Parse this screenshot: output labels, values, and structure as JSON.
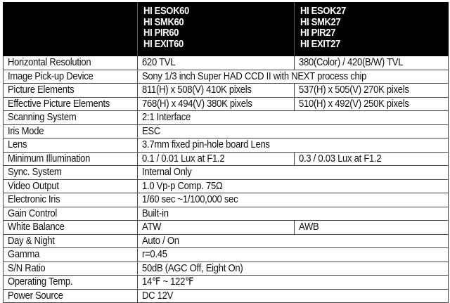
{
  "header": {
    "col2": [
      "HI ESOK60",
      "HI SMK60",
      "HI PIR60",
      "HI EXIT60"
    ],
    "col3": [
      "HI ESOK27",
      "HI SMK27",
      "HI PIR27",
      "HI EXIT27"
    ]
  },
  "rows": [
    {
      "label": "Horizontal Resolution",
      "v1": "620 TVL",
      "v2": "380(Color) / 420(B/W) TVL"
    },
    {
      "label": "Image Pick-up Device",
      "v": "Sony 1/3 inch Super HAD CCD II with NEXT process chip"
    },
    {
      "label": "Picture Elements",
      "v1": "811(H) x 508(V) 410K pixels",
      "v2": "537(H) x 505(V) 270K pixels"
    },
    {
      "label": "Effective Picture Elements",
      "v1": "768(H) x 494(V) 380K pixels",
      "v2": "510(H) x 492(V) 250K pixels"
    },
    {
      "label": "Scanning System",
      "v": "2:1 Interface"
    },
    {
      "label": "Iris Mode",
      "v": "ESC"
    },
    {
      "label": "Lens",
      "v": "3.7mm fixed pin-hole board Lens"
    },
    {
      "label": "Minimum Illumination",
      "v1": "0.1 / 0.01 Lux at F1.2",
      "v2": "0.3 / 0.03 Lux at F1.2"
    },
    {
      "label": "Sync. System",
      "v": "Internal Only"
    },
    {
      "label": "Video Output",
      "v": "1.0 Vp-p Comp. 75Ω"
    },
    {
      "label": "Electronic Iris",
      "v": "1/60 sec ~1/100,000 sec"
    },
    {
      "label": "Gain Control",
      "v": "Built-in"
    },
    {
      "label": "White Balance",
      "v1": "ATW",
      "v2": "AWB"
    },
    {
      "label": "Day & Night",
      "v": "Auto / On"
    },
    {
      "label": "Gamma",
      "v": "r=0.45"
    },
    {
      "label": "S/N Ratio",
      "v": "50dB (AGC Off, Eight On)"
    },
    {
      "label": "Operating Temp.",
      "v": "14℉ ~ 122℉"
    },
    {
      "label": "Power Source",
      "v": "DC 12V"
    }
  ]
}
